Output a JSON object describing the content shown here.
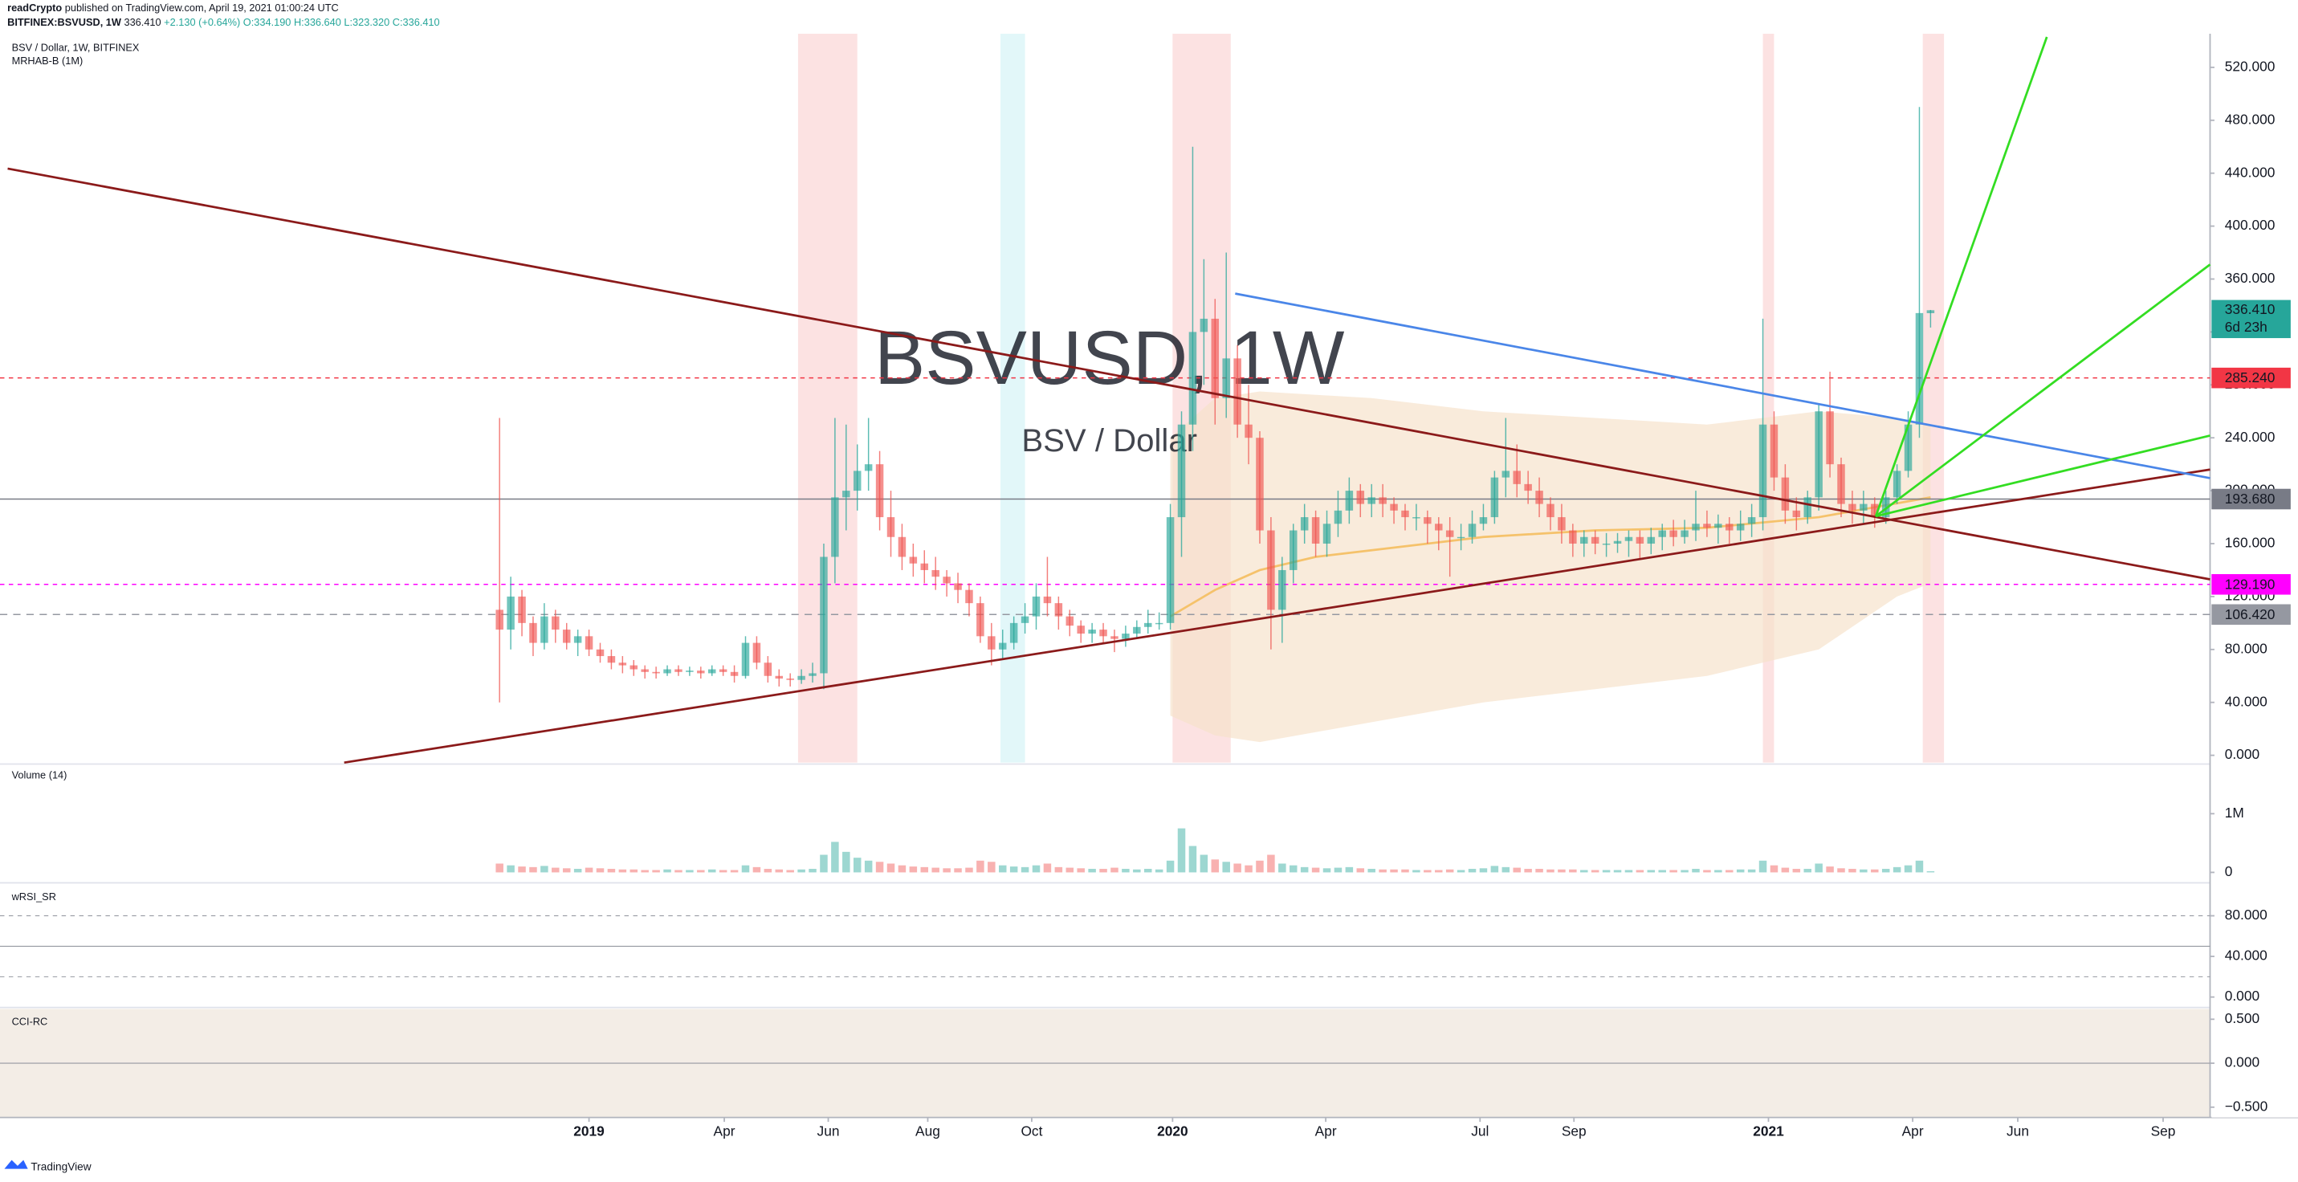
{
  "header": {
    "publisher": "readCrypto",
    "published": "published on TradingView.com, April 19, 2021 01:00:24 UTC",
    "symbol": "BITFINEX:BSVUSD, 1W",
    "last": "336.410",
    "change": "+2.130 (+0.64%)",
    "open": "O:334.190",
    "high": "H:336.640",
    "low": "L:323.320",
    "close": "C:336.410"
  },
  "chart_data": {
    "type": "candlestick",
    "title": "BSV / Dollar, 1W, BITFINEX",
    "indicator": "MRHAB-B (1M)",
    "watermark": "BSVUSD, 1W",
    "watermark_sub": "BSV / Dollar",
    "up_color": "#26a69a",
    "down_color": "#ef5350",
    "x": [
      -8,
      -7,
      -6,
      -5,
      -4,
      -3,
      -2,
      -1,
      0,
      1,
      2,
      3,
      4,
      5,
      6,
      7,
      8,
      9,
      10,
      11,
      12,
      13,
      14,
      15,
      16,
      17,
      18,
      19,
      20,
      21,
      22,
      23,
      24,
      25,
      26,
      27,
      28,
      29,
      30,
      31,
      32,
      33,
      34,
      35,
      36,
      37,
      38,
      39,
      40,
      41,
      42,
      43,
      44,
      45,
      46,
      47,
      48,
      49,
      50,
      51,
      52,
      53,
      54,
      55,
      56,
      57,
      58,
      59,
      60,
      61,
      62,
      63,
      64,
      65,
      66,
      67,
      68,
      69,
      70,
      71,
      72,
      73,
      74,
      75,
      76,
      77,
      78,
      79,
      80,
      81,
      82,
      83,
      84,
      85,
      86,
      87,
      88,
      89,
      90,
      91,
      92,
      93,
      94,
      95,
      96,
      97,
      98,
      99,
      100,
      101,
      102,
      103,
      104,
      105,
      106,
      107,
      108,
      109,
      110,
      111,
      112,
      113,
      114,
      115,
      116,
      117,
      118,
      119,
      120
    ],
    "open": [
      110,
      95,
      120,
      100,
      85,
      105,
      95,
      85,
      90,
      80,
      75,
      70,
      68,
      65,
      63,
      62,
      65,
      63,
      64,
      62,
      65,
      63,
      60,
      85,
      70,
      60,
      58,
      57,
      60,
      62,
      150,
      195,
      200,
      215,
      220,
      180,
      165,
      150,
      145,
      140,
      135,
      130,
      125,
      115,
      90,
      80,
      85,
      100,
      105,
      120,
      115,
      105,
      98,
      92,
      95,
      90,
      88,
      92,
      97,
      100,
      100,
      180,
      250,
      320,
      330,
      270,
      300,
      250,
      240,
      170,
      110,
      140,
      170,
      180,
      160,
      175,
      185,
      200,
      190,
      195,
      190,
      185,
      180,
      180,
      175,
      170,
      165,
      165,
      175,
      180,
      210,
      215,
      205,
      200,
      190,
      180,
      170,
      160,
      165,
      160,
      160,
      162,
      165,
      160,
      165,
      170,
      165,
      170,
      175,
      172,
      175,
      170,
      175,
      180,
      250,
      210,
      185,
      180,
      195,
      260,
      220,
      190,
      185,
      190,
      180,
      195,
      215,
      250,
      334.19
    ],
    "high": [
      255,
      135,
      125,
      105,
      115,
      110,
      100,
      95,
      95,
      85,
      80,
      75,
      72,
      68,
      67,
      68,
      68,
      67,
      67,
      68,
      68,
      68,
      90,
      90,
      75,
      65,
      62,
      65,
      70,
      160,
      255,
      250,
      235,
      255,
      230,
      200,
      175,
      160,
      155,
      150,
      140,
      138,
      130,
      120,
      100,
      95,
      105,
      115,
      130,
      150,
      120,
      110,
      102,
      100,
      100,
      95,
      98,
      102,
      110,
      108,
      190,
      260,
      460,
      375,
      345,
      380,
      310,
      280,
      245,
      180,
      150,
      175,
      190,
      185,
      185,
      200,
      210,
      205,
      205,
      205,
      195,
      190,
      190,
      185,
      180,
      180,
      175,
      185,
      190,
      215,
      255,
      235,
      215,
      210,
      195,
      190,
      175,
      170,
      170,
      168,
      168,
      170,
      170,
      172,
      175,
      178,
      178,
      200,
      185,
      182,
      180,
      185,
      190,
      330,
      260,
      220,
      195,
      200,
      265,
      290,
      225,
      200,
      200,
      195,
      200,
      220,
      260,
      490,
      336.64
    ],
    "low": [
      40,
      80,
      90,
      75,
      80,
      85,
      80,
      75,
      75,
      70,
      65,
      62,
      60,
      58,
      58,
      60,
      60,
      60,
      58,
      60,
      60,
      55,
      58,
      65,
      55,
      52,
      52,
      54,
      55,
      50,
      130,
      170,
      185,
      200,
      170,
      150,
      140,
      135,
      130,
      125,
      120,
      115,
      105,
      85,
      68,
      72,
      80,
      92,
      95,
      105,
      95,
      90,
      85,
      85,
      85,
      78,
      82,
      88,
      92,
      95,
      95,
      150,
      230,
      280,
      250,
      255,
      240,
      220,
      160,
      80,
      85,
      130,
      160,
      150,
      150,
      165,
      175,
      180,
      180,
      180,
      175,
      170,
      170,
      160,
      155,
      135,
      155,
      160,
      170,
      175,
      195,
      195,
      190,
      180,
      170,
      160,
      150,
      150,
      152,
      150,
      153,
      150,
      148,
      152,
      155,
      158,
      160,
      162,
      165,
      160,
      160,
      162,
      165,
      170,
      200,
      175,
      170,
      175,
      185,
      210,
      180,
      175,
      175,
      172,
      175,
      190,
      210,
      240,
      323.32
    ],
    "close": [
      95,
      120,
      100,
      85,
      105,
      95,
      85,
      90,
      80,
      75,
      70,
      68,
      65,
      63,
      62,
      65,
      63,
      64,
      62,
      65,
      63,
      60,
      85,
      70,
      60,
      58,
      57,
      60,
      62,
      150,
      195,
      200,
      215,
      220,
      180,
      165,
      150,
      145,
      140,
      135,
      130,
      125,
      115,
      90,
      80,
      85,
      100,
      105,
      120,
      115,
      105,
      98,
      92,
      95,
      90,
      88,
      92,
      97,
      100,
      100,
      180,
      250,
      320,
      330,
      270,
      300,
      250,
      240,
      170,
      110,
      140,
      170,
      180,
      160,
      175,
      185,
      200,
      190,
      195,
      190,
      185,
      180,
      180,
      175,
      170,
      165,
      165,
      175,
      180,
      210,
      215,
      205,
      200,
      190,
      180,
      170,
      160,
      165,
      160,
      160,
      162,
      165,
      160,
      165,
      170,
      165,
      170,
      175,
      172,
      175,
      170,
      175,
      180,
      250,
      210,
      185,
      180,
      195,
      260,
      220,
      190,
      185,
      190,
      180,
      195,
      215,
      250,
      334.28,
      336.41
    ],
    "xlim": [
      -52.03,
      145
    ],
    "xticks": [
      {
        "value": 0,
        "label": "2019"
      },
      {
        "value": 12.1,
        "label": "Apr"
      },
      {
        "value": 21.4,
        "label": "Jun"
      },
      {
        "value": 30.3,
        "label": "Aug"
      },
      {
        "value": 39.6,
        "label": "Oct"
      },
      {
        "value": 52.2,
        "label": "2020"
      },
      {
        "value": 65.9,
        "label": "Apr"
      },
      {
        "value": 79.7,
        "label": "Jul"
      },
      {
        "value": 88.1,
        "label": "Sep"
      },
      {
        "value": 105.5,
        "label": "2021"
      },
      {
        "value": 118.4,
        "label": "Apr"
      },
      {
        "value": 127.8,
        "label": "Jun"
      },
      {
        "value": 140.8,
        "label": "Sep"
      }
    ],
    "ylim": [
      -5.5,
      543.2
    ],
    "yticks": [
      {
        "value": 0,
        "label": "0.000"
      },
      {
        "value": 40,
        "label": "40.000"
      },
      {
        "value": 80,
        "label": "80.000"
      },
      {
        "value": 120,
        "label": "120.000"
      },
      {
        "value": 160,
        "label": "160.000"
      },
      {
        "value": 200,
        "label": "200.000"
      },
      {
        "value": 240,
        "label": "240.000"
      },
      {
        "value": 280,
        "label": "280.000"
      },
      {
        "value": 320,
        "label": "320.000"
      },
      {
        "value": 360,
        "label": "360.000"
      },
      {
        "value": 400,
        "label": "400.000"
      },
      {
        "value": 440,
        "label": "440.000"
      },
      {
        "value": 480,
        "label": "480.000"
      },
      {
        "value": 520,
        "label": "520.000"
      }
    ],
    "levels": [
      {
        "value": 285.24,
        "label": "285.240",
        "color": "#f23645",
        "text_color": "#ffffff",
        "dash": "3,3"
      },
      {
        "value": 193.68,
        "label": "193.680",
        "color": "#787b86",
        "text_color": "#131722",
        "dash": "none"
      },
      {
        "value": 129.19,
        "label": "129.190",
        "color": "#ff00ff",
        "text_color": "#ffffff",
        "dash": "3,3"
      },
      {
        "value": 106.42,
        "label": "106.420",
        "color": "#9598a1",
        "text_color": "#131722",
        "dash": "5,4"
      }
    ],
    "last_price": {
      "value": 336.41,
      "label": "336.410",
      "countdown": "6d 23h",
      "color": "#26a69a"
    },
    "highlight_bands": [
      {
        "from": 18.7,
        "to": 24,
        "color": "#fbd5d5"
      },
      {
        "from": 36.8,
        "to": 39,
        "color": "#d5f3f7"
      },
      {
        "from": 52.2,
        "to": 57.4,
        "color": "#fbd5d5"
      },
      {
        "from": 105,
        "to": 106,
        "color": "#fbd5d5"
      },
      {
        "from": 119.3,
        "to": 121.2,
        "color": "#fbd5d5"
      }
    ],
    "cloud": {
      "color": "#f6e3cc",
      "x": [
        52,
        56,
        60,
        70,
        80,
        90,
        100,
        110,
        117,
        120
      ],
      "upper": [
        240,
        270,
        275,
        270,
        260,
        255,
        250,
        260,
        255,
        250
      ],
      "lower": [
        30,
        15,
        10,
        25,
        40,
        50,
        60,
        80,
        120,
        130
      ]
    },
    "ma": {
      "color": "#f5c26b",
      "x": [
        52,
        56,
        60,
        65,
        70,
        80,
        90,
        100,
        110,
        120
      ],
      "values": [
        105,
        125,
        140,
        150,
        155,
        165,
        170,
        172,
        180,
        195
      ]
    },
    "trend_lines": [
      {
        "color": "#8b1a1a",
        "points": [
          [
            -52,
            443.5
          ],
          [
            145,
            133
          ]
        ]
      },
      {
        "color": "#8b1a1a",
        "points": [
          [
            -21.9,
            -5.5
          ],
          [
            145,
            216
          ]
        ]
      },
      {
        "color": "#4a86e8",
        "points": [
          [
            57.8,
            349
          ],
          [
            145,
            209.5
          ]
        ]
      },
      {
        "color": "#33dd22",
        "points": [
          [
            115.1,
            180.7
          ],
          [
            130.4,
            543
          ]
        ]
      },
      {
        "color": "#33dd22",
        "points": [
          [
            115.1,
            180.7
          ],
          [
            145,
            371
          ]
        ]
      },
      {
        "color": "#33dd22",
        "points": [
          [
            115.1,
            180.7
          ],
          [
            145,
            241.7
          ]
        ]
      }
    ]
  },
  "volume": {
    "title": "Volume (14)",
    "ylim": [
      -128000,
      1846000
    ],
    "yticks": [
      {
        "value": 0,
        "label": "0"
      },
      {
        "value": 1000000,
        "label": "1M"
      }
    ],
    "values": [
      150000,
      120000,
      100000,
      90000,
      110000,
      80000,
      70000,
      60000,
      80000,
      70000,
      60000,
      50000,
      50000,
      40000,
      40000,
      50000,
      40000,
      40000,
      40000,
      50000,
      40000,
      40000,
      120000,
      90000,
      60000,
      50000,
      40000,
      50000,
      60000,
      300000,
      520000,
      350000,
      250000,
      200000,
      180000,
      150000,
      120000,
      100000,
      90000,
      80000,
      70000,
      70000,
      80000,
      200000,
      180000,
      120000,
      100000,
      90000,
      120000,
      150000,
      90000,
      80000,
      70000,
      60000,
      60000,
      80000,
      60000,
      50000,
      60000,
      50000,
      200000,
      750000,
      450000,
      300000,
      220000,
      180000,
      150000,
      120000,
      200000,
      300000,
      150000,
      120000,
      90000,
      80000,
      70000,
      80000,
      90000,
      70000,
      60000,
      50000,
      50000,
      50000,
      40000,
      40000,
      40000,
      50000,
      40000,
      60000,
      70000,
      110000,
      90000,
      80000,
      60000,
      60000,
      50000,
      50000,
      50000,
      40000,
      40000,
      40000,
      40000,
      40000,
      40000,
      40000,
      40000,
      40000,
      40000,
      60000,
      40000,
      40000,
      40000,
      50000,
      50000,
      200000,
      120000,
      80000,
      60000,
      60000,
      150000,
      100000,
      70000,
      60000,
      50000,
      50000,
      60000,
      90000,
      120000,
      200000,
      20000
    ]
  },
  "wrsi": {
    "title": "wRSI_SR",
    "ylim": [
      -7.4,
      111
    ],
    "yticks": [
      {
        "value": 0,
        "label": "0.000"
      },
      {
        "value": 40,
        "label": "40.000"
      },
      {
        "value": 80,
        "label": "80.000"
      }
    ],
    "levels": [
      80,
      50,
      20
    ]
  },
  "cci": {
    "title": "CCI-RC",
    "ylim": [
      -0.617,
      0.617
    ],
    "yticks": [
      {
        "value": -0.5,
        "label": "−0.500"
      },
      {
        "value": 0,
        "label": "0.000"
      },
      {
        "value": 0.5,
        "label": "0.500"
      }
    ]
  },
  "footer": "TradingView"
}
